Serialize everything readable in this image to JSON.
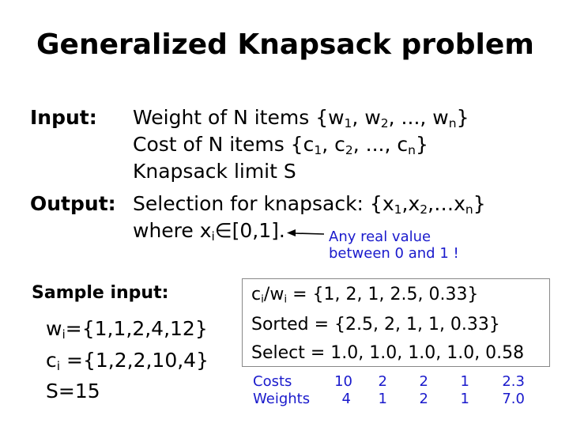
{
  "title": "Generalized Knapsack problem",
  "input_label": "Input:",
  "output_label": "Output:",
  "input": {
    "weights_prefix": "Weight of N items {w",
    "costs_prefix": "Cost of N items {c",
    "sub1": "1",
    "sub2": "2",
    "subn": "n",
    "sep_comma": ", ",
    "ellipsis": ", ..., ",
    "close": "}",
    "limit": "Knapsack limit S"
  },
  "output": {
    "selection_prefix": "Selection for knapsack: {x",
    "sep": ",x",
    "dots": ",…x",
    "where_prefix": "where x",
    "where_sub": "i",
    "where_rest": "∈[0,1].",
    "annotation_line1": "Any real value",
    "annotation_line2": "between 0 and 1 !"
  },
  "sample": {
    "heading": "Sample input:",
    "w_prefix": "w",
    "w_sub": "i",
    "w_rest": "={1,1,2,4,12}",
    "c_prefix": "c",
    "c_sub": "i",
    "c_rest": " ={1,2,2,10,4}",
    "s_line": "S=15"
  },
  "result": {
    "ratio_c": "c",
    "ratio_sub1": "i",
    "ratio_mid": "/w",
    "ratio_sub2": "i",
    "ratio_rest": " = {1, 2, 1, 2.5, 0.33}",
    "sorted": "Sorted = {2.5, 2, 1, 1, 0.33}",
    "select": "Select = 1.0, 1.0, 1.0, 1.0, 0.58"
  },
  "table": {
    "rows": [
      {
        "label": "Costs",
        "values": [
          "10",
          "2",
          "2",
          "1",
          "2.3"
        ]
      },
      {
        "label": "Weights",
        "values": [
          "4",
          "1",
          "2",
          "1",
          "7.0"
        ]
      }
    ]
  },
  "colors": {
    "annotation": "#1a1acc",
    "box_border": "#888888"
  }
}
